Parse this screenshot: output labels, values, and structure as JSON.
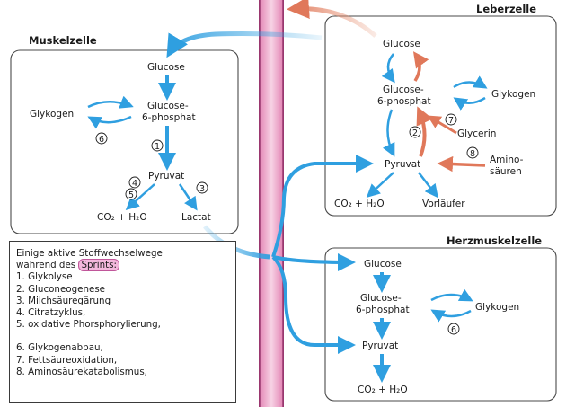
{
  "cells": {
    "muscle": {
      "title": "Muskelzelle",
      "glucose": "Glucose",
      "g6p_line1": "Glucose-",
      "g6p_line2": "6-phosphat",
      "glycogen": "Glykogen",
      "pyruvate": "Pyruvat",
      "co2_h2o": "CO₂ + H₂O",
      "lactate": "Lactat",
      "step_glycolysis": "1",
      "step_citric": "4",
      "step_oxphos": "5",
      "step_lactic": "3",
      "step_glycogen": "6"
    },
    "liver": {
      "title": "Leberzelle",
      "glucose": "Glucose",
      "g6p_line1": "Glucose-",
      "g6p_line2": "6-phosphat",
      "glycogen": "Glykogen",
      "glycerol": "Glycerin",
      "pyruvate": "Pyruvat",
      "amino_line1": "Amino-",
      "amino_line2": "säuren",
      "co2_h2o": "CO₂ + H₂O",
      "precursor": "Vorläufer",
      "step_gluconeo": "2",
      "step_fatty": "7",
      "step_amino": "8"
    },
    "heart": {
      "title": "Herzmuskelzelle",
      "glucose": "Glucose",
      "g6p_line1": "Glucose-",
      "g6p_line2": "6-phosphat",
      "glycogen": "Glykogen",
      "pyruvate": "Pyruvat",
      "co2_h2o": "CO₂ + H₂O",
      "step_glycogen": "6"
    }
  },
  "legend": {
    "intro_line1": "Einige aktive Stoffwechselwege",
    "intro_line2_prefix": "während des ",
    "intro_highlight": "Sprints:",
    "items": [
      "1. Glykolyse",
      "2. Gluconeogenese",
      "3. Milchsäuregärung",
      "4. Citratzyklus,",
      "5. oxidative Phorsphorylierung,",
      "6. Glykogenabbau,",
      "7. Fettsäureoxidation,",
      "8. Aminosäurekatabolismus,"
    ]
  },
  "colors": {
    "blue_arrow": "#2f9fe0",
    "orange_arrow": "#e8987a",
    "vessel_pink": "#e8a2c3",
    "vessel_dark": "#a43b76",
    "sprint_highlight": "#f3b8dc"
  }
}
